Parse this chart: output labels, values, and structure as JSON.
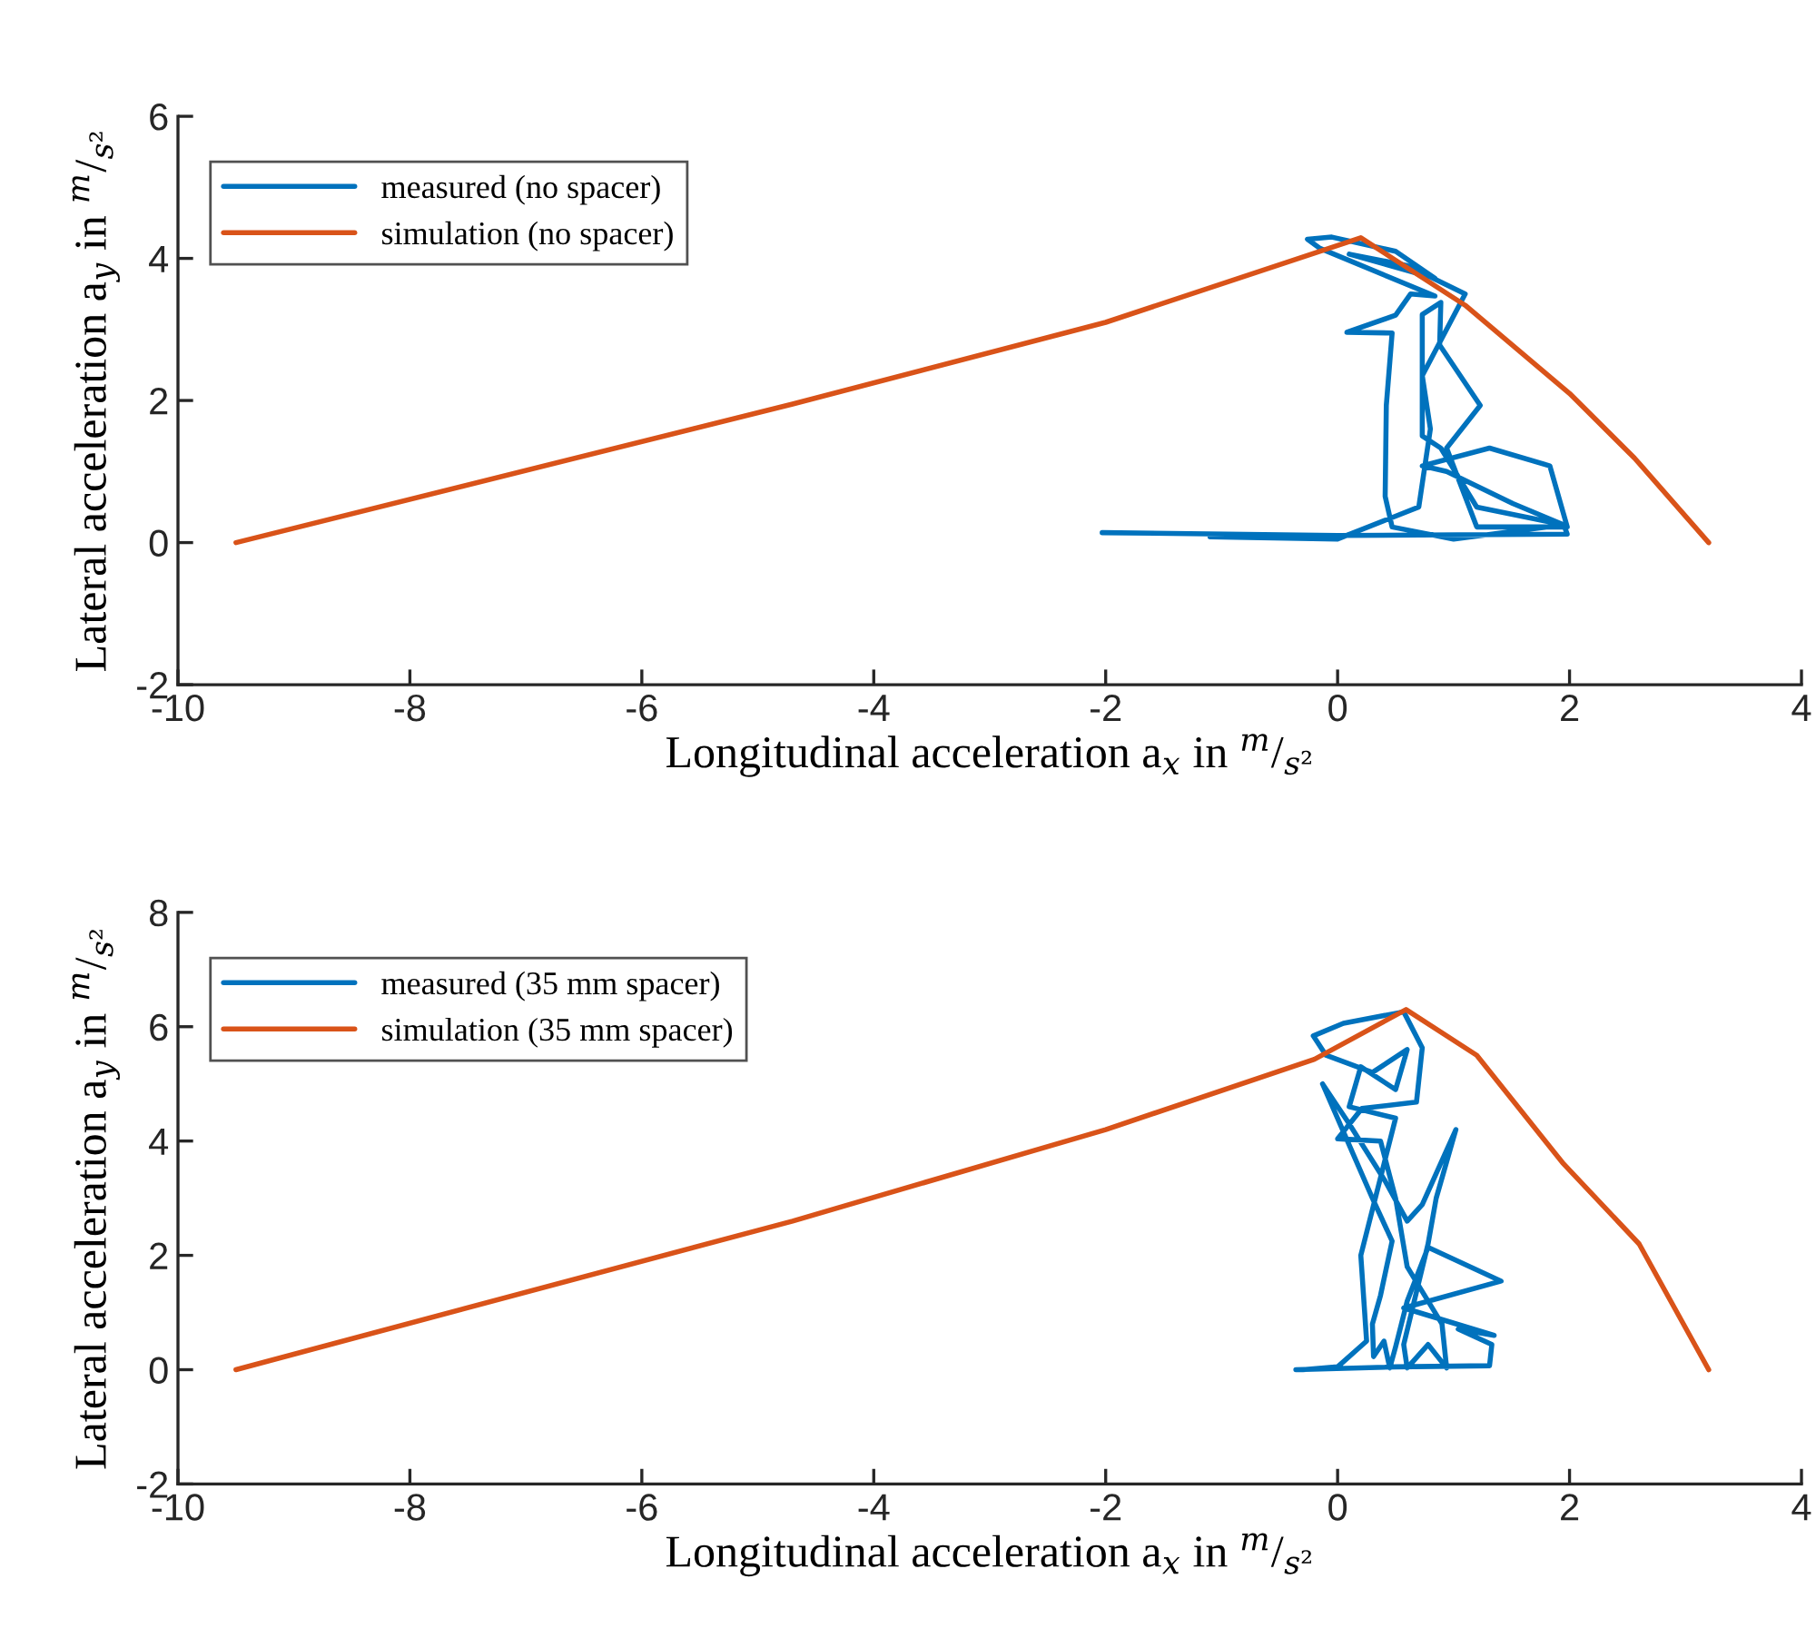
{
  "chart_data": [
    {
      "type": "line",
      "xlabel": "Longitudinal acceleration a$_{x}$ in $^{m}$/$_{s²}$",
      "ylabel": "Lateral acceleration a$_{y}$ in $^{m}$/$_{s²}$",
      "xlim": [
        -10,
        4
      ],
      "xticks": [
        -10,
        -8,
        -6,
        -4,
        -2,
        0,
        2,
        4
      ],
      "ylim": [
        -2,
        6
      ],
      "yticks": [
        -2,
        0,
        2,
        4,
        6
      ],
      "grid": false,
      "legend": "top left",
      "series": [
        {
          "name": "measured (no spacer)",
          "color": "#0072bd",
          "x": [
            -2.03,
            0,
            1.98,
            1.95,
            1.51,
            0.94,
            0.73,
            1.31,
            1.83,
            1.98,
            1.2,
            0.94,
            1.23,
            0.88,
            0.89,
            0.73,
            0.73,
            0.89,
            1.2,
            1.95,
            1.0,
            0.47,
            0.41,
            0.42,
            0.47,
            0.08,
            0.5,
            0.63,
            0.84,
            -0.15,
            -0.26,
            -0.05,
            0.5,
            0.84,
            0.1,
            0.6,
            1.1,
            0.73,
            0.8,
            0.7,
            0.0,
            -1.1
          ],
          "values": [
            0.14,
            0.1,
            0.12,
            0.25,
            0.55,
            1.0,
            1.08,
            1.33,
            1.08,
            0.22,
            0.22,
            1.33,
            1.93,
            2.78,
            3.38,
            3.21,
            1.5,
            1.33,
            0.5,
            0.25,
            0.05,
            0.22,
            0.65,
            1.93,
            2.95,
            2.96,
            3.2,
            3.5,
            3.47,
            4.14,
            4.27,
            4.3,
            4.1,
            3.72,
            4.06,
            3.9,
            3.5,
            2.35,
            1.6,
            0.5,
            0.05,
            0.08
          ]
        },
        {
          "name": "simulation (no spacer)",
          "color": "#d95319",
          "x": [
            -9.5,
            -4.7,
            -2,
            0.2,
            1.1,
            2,
            2.56,
            3.2
          ],
          "values": [
            0,
            1.95,
            3.1,
            4.29,
            3.34,
            2.1,
            1.19,
            0
          ]
        }
      ]
    },
    {
      "type": "line",
      "xlabel": "Longitudinal acceleration a$_{x}$ in $^{m}$/$_{s²}$",
      "ylabel": "Lateral acceleration a$_{y}$ in $^{m}$/$_{s²}$",
      "xlim": [
        -10,
        4
      ],
      "xticks": [
        -10,
        -8,
        -6,
        -4,
        -2,
        0,
        2,
        4
      ],
      "ylim": [
        -2,
        8
      ],
      "yticks": [
        -2,
        0,
        2,
        4,
        6,
        8
      ],
      "grid": false,
      "legend": "top left",
      "series": [
        {
          "name": "measured (35 mm spacer)",
          "color": "#0072bd",
          "x": [
            -0.36,
            0.5,
            1.31,
            1.33,
            1.04,
            1.35,
            0.57,
            1.41,
            0.78,
            0.6,
            0.5,
            0.45,
            0.4,
            0.31,
            0.3,
            0.37,
            0.47,
            0.3,
            -0.13,
            0.1,
            0.41,
            0.6,
            0.73,
            1.02,
            0.85,
            0.78,
            0.57,
            0.6,
            0.78,
            0.94,
            0.9,
            0.6,
            0.5,
            0.37,
            0,
            0.21,
            0.68,
            0.73,
            0.57,
            0.05,
            -0.21,
            -0.1,
            0.3,
            0.6,
            0.5,
            0.2,
            0.1,
            0.5,
            0.4,
            0.2,
            0.25,
            0.0,
            -0.3
          ],
          "values": [
            0,
            0.05,
            0.07,
            0.44,
            0.71,
            0.6,
            1.08,
            1.55,
            2.14,
            1.2,
            0.4,
            0.03,
            0.5,
            0.23,
            0.8,
            1.3,
            2.25,
            3.0,
            5.0,
            4.3,
            3.3,
            2.6,
            2.89,
            4.2,
            3.0,
            2.2,
            0.44,
            0.03,
            0.44,
            0.03,
            0.8,
            1.8,
            3.0,
            4.0,
            4.04,
            4.57,
            4.68,
            5.63,
            6.26,
            6.06,
            5.84,
            5.5,
            5.2,
            5.6,
            4.9,
            5.3,
            4.6,
            4.4,
            3.6,
            2.0,
            0.5,
            0.05,
            0.0
          ]
        },
        {
          "name": "simulation (35 mm spacer)",
          "color": "#d95319",
          "x": [
            -9.5,
            -4.7,
            -2,
            -0.2,
            0.59,
            1.2,
            1.94,
            2.6,
            3.2
          ],
          "values": [
            0,
            2.6,
            4.2,
            5.43,
            6.3,
            5.5,
            3.62,
            2.2,
            0
          ]
        }
      ]
    }
  ]
}
